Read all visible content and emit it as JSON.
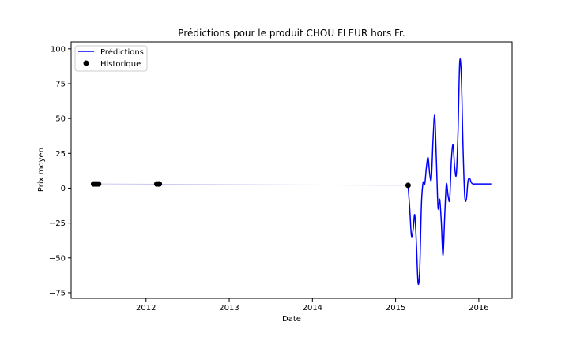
{
  "chart_data": {
    "type": "line",
    "title": "Prédictions pour le produit CHOU FLEUR hors Fr.",
    "xlabel": "Date",
    "ylabel": "Prix moyen",
    "xlim": [
      2011.1,
      2016.4
    ],
    "ylim": [
      -79,
      105
    ],
    "x_ticks": [
      2012,
      2013,
      2014,
      2015,
      2016
    ],
    "y_ticks": [
      -75,
      -50,
      -25,
      0,
      25,
      50,
      75,
      100
    ],
    "legend": {
      "placement": "top-left",
      "entries": [
        "Prédictions",
        "Historique"
      ]
    },
    "colors": {
      "predictions": "#0000ff",
      "trend": "#c8c8f0",
      "historique": "#000000"
    },
    "grid": false,
    "series": [
      {
        "name": "Historique",
        "kind": "scatter",
        "x": [
          2011.37,
          2011.39,
          2011.41,
          2011.43,
          2012.13,
          2012.15,
          2012.16,
          2015.15
        ],
        "y": [
          3,
          3,
          3,
          3,
          3,
          3,
          3,
          2
        ]
      },
      {
        "name": "Prédictions",
        "kind": "line",
        "x": [
          2015.15,
          2015.17,
          2015.19,
          2015.21,
          2015.23,
          2015.25,
          2015.27,
          2015.29,
          2015.31,
          2015.33,
          2015.35,
          2015.37,
          2015.39,
          2015.41,
          2015.43,
          2015.45,
          2015.47,
          2015.49,
          2015.51,
          2015.53,
          2015.55,
          2015.57,
          2015.59,
          2015.61,
          2015.63,
          2015.65,
          2015.67,
          2015.69,
          2015.71,
          2015.73,
          2015.75,
          2015.77,
          2015.79,
          2015.81,
          2015.83,
          2015.85,
          2015.87,
          2015.89,
          2015.91,
          2015.93,
          2015.95,
          2015.97,
          2015.99,
          2016.01,
          2016.03,
          2016.05,
          2016.07,
          2016.09,
          2016.11,
          2016.13,
          2016.15
        ],
        "y": [
          2,
          -15,
          -34,
          -30,
          -19,
          -40,
          -68,
          -58,
          -12,
          4,
          3,
          15,
          22,
          10,
          7,
          35,
          52,
          20,
          -14,
          -8,
          -25,
          -48,
          -20,
          3,
          -5,
          -8,
          20,
          31,
          15,
          10,
          40,
          90,
          80,
          30,
          -5,
          -8,
          5,
          7,
          4,
          3,
          3,
          3,
          3,
          3,
          3,
          3,
          3,
          3,
          3,
          3,
          3
        ]
      },
      {
        "name": "Tendance",
        "kind": "trend",
        "x": [
          2011.43,
          2015.15
        ],
        "y": [
          3,
          2
        ]
      }
    ]
  }
}
